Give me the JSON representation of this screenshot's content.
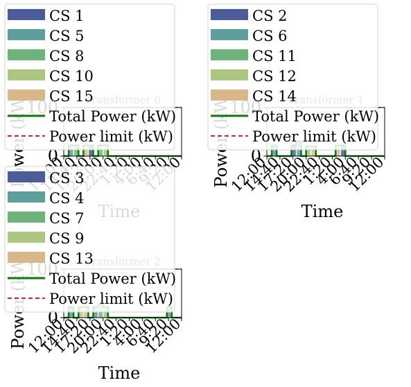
{
  "colors": {
    "cs_palette": [
      "#4c5b9a",
      "#5e9e9b",
      "#6db37a",
      "#adc681",
      "#d8b88a"
    ],
    "total_line": "#0a7a0a",
    "limit_line": "#e02020"
  },
  "chart_data": [
    {
      "type": "bar",
      "title": "Transformer 0",
      "xlabel": "Time",
      "ylabel": "Power (kW)",
      "xticks": [
        "12:00",
        "14:40",
        "17:20",
        "20:00",
        "22:40",
        "1:20",
        "4:00",
        "6:40",
        "9:20",
        "12:00"
      ],
      "yticks": [
        "0",
        "100"
      ],
      "ylim": [
        0,
        100
      ],
      "power_limit": 100,
      "legend": [
        "CS 1",
        "CS 5",
        "CS 8",
        "CS 10",
        "CS 15",
        "Total Power (kW)",
        "Power limit (kW)"
      ],
      "series_values": [
        [
          0,
          1,
          1,
          0,
          1,
          1,
          0,
          1,
          1,
          0,
          0,
          0,
          0,
          0,
          0,
          0,
          0,
          0,
          0,
          0,
          0,
          0,
          0,
          0
        ]
      ],
      "total": [
        0,
        22,
        22,
        0,
        22,
        22,
        0,
        22,
        22,
        0,
        0,
        0,
        0,
        0,
        0,
        0,
        0,
        0,
        0,
        0,
        0,
        0,
        0,
        0
      ]
    },
    {
      "type": "bar",
      "title": "Transformer 1",
      "xlabel": "Time",
      "ylabel": "Power (kW)",
      "xticks": [
        "12:00",
        "14:40",
        "17:20",
        "20:00",
        "22:40",
        "1:20",
        "4:00",
        "6:40",
        "9:20",
        "12:00"
      ],
      "yticks": [
        "0",
        "100"
      ],
      "ylim": [
        0,
        100
      ],
      "power_limit": 100,
      "legend": [
        "CS 2",
        "CS 6",
        "CS 11",
        "CS 12",
        "CS 14",
        "Total Power (kW)",
        "Power limit (kW)"
      ],
      "total": [
        0,
        22,
        0,
        0,
        0,
        22,
        30,
        0,
        20,
        20,
        0,
        0,
        0,
        0,
        22,
        22,
        0,
        0,
        0,
        0,
        0,
        0,
        0,
        0
      ]
    },
    {
      "type": "bar",
      "title": "Transformer 2",
      "xlabel": "Time",
      "ylabel": "Power (kW)",
      "xticks": [
        "12:00",
        "14:40",
        "17:20",
        "20:00",
        "22:40",
        "1:20",
        "4:00",
        "6:40",
        "9:20",
        "12:00"
      ],
      "yticks": [
        "0",
        "100"
      ],
      "ylim": [
        0,
        100
      ],
      "power_limit": 100,
      "legend": [
        "CS 3",
        "CS 4",
        "CS 7",
        "CS 9",
        "CS 13",
        "Total Power (kW)",
        "Power limit (kW)"
      ],
      "total": [
        0,
        22,
        0,
        22,
        22,
        0,
        22,
        28,
        22,
        0,
        0,
        0,
        0,
        0,
        0,
        0,
        0,
        0,
        0,
        0,
        0,
        22,
        0,
        0
      ]
    }
  ]
}
